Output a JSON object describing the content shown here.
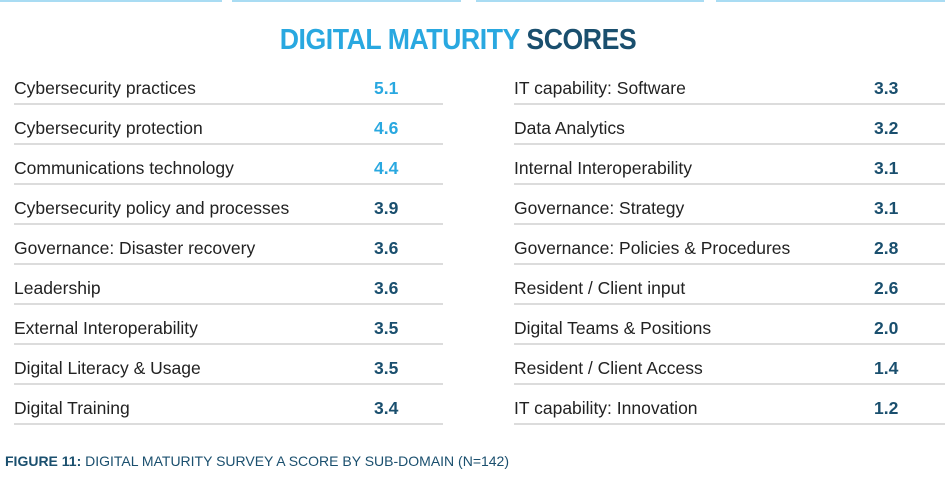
{
  "title": {
    "part1": "DIGITAL MATURITY",
    "part2": "SCORES"
  },
  "colors": {
    "highlight": "#29a8e0",
    "default": "#1a4f6e",
    "label": "#222222"
  },
  "left": [
    {
      "label": "Cybersecurity practices",
      "value": "5.1",
      "highlight": true
    },
    {
      "label": "Cybersecurity protection",
      "value": "4.6",
      "highlight": true
    },
    {
      "label": "Communications technology",
      "value": "4.4",
      "highlight": true
    },
    {
      "label": "Cybersecurity policy and processes",
      "value": "3.9",
      "highlight": false
    },
    {
      "label": "Governance: Disaster recovery",
      "value": "3.6",
      "highlight": false
    },
    {
      "label": "Leadership",
      "value": "3.6",
      "highlight": false
    },
    {
      "label": "External Interoperability",
      "value": "3.5",
      "highlight": false
    },
    {
      "label": "Digital Literacy & Usage",
      "value": "3.5",
      "highlight": false
    },
    {
      "label": "Digital Training",
      "value": "3.4",
      "highlight": false
    }
  ],
  "right": [
    {
      "label": "IT capability: Software",
      "value": "3.3",
      "highlight": false
    },
    {
      "label": "Data Analytics",
      "value": "3.2",
      "highlight": false
    },
    {
      "label": "Internal Interoperability",
      "value": "3.1",
      "highlight": false
    },
    {
      "label": "Governance: Strategy",
      "value": "3.1",
      "highlight": false
    },
    {
      "label": "Governance: Policies & Procedures",
      "value": "2.8",
      "highlight": false
    },
    {
      "label": "Resident / Client input",
      "value": "2.6",
      "highlight": false
    },
    {
      "label": "Digital Teams & Positions",
      "value": "2.0",
      "highlight": false
    },
    {
      "label": "Resident / Client Access",
      "value": "1.4",
      "highlight": false
    },
    {
      "label": "IT capability: Innovation",
      "value": "1.2",
      "highlight": false
    }
  ],
  "caption": {
    "prefix": "FIGURE 11:",
    "text": " DIGITAL MATURITY SURVEY A SCORE BY SUB-DOMAIN (N=142)"
  }
}
